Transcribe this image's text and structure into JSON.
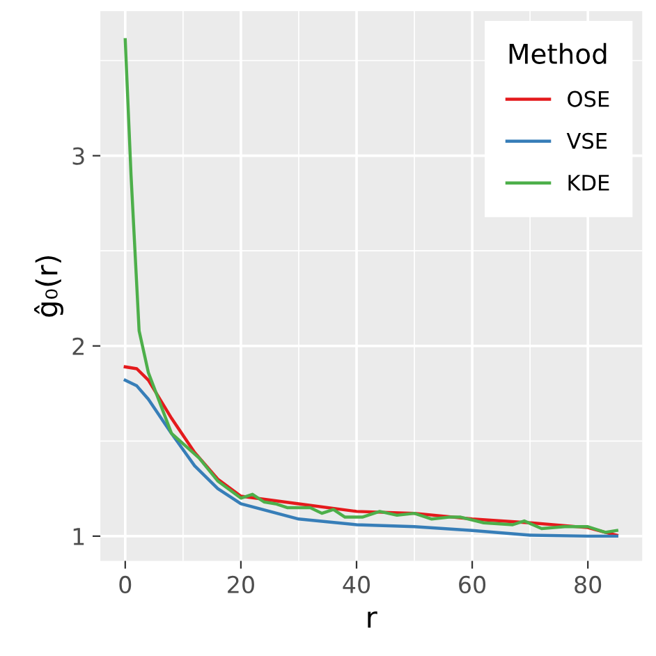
{
  "chart_data": {
    "type": "line",
    "xlabel": "r",
    "ylabel": "ĝ₀(r)",
    "legend_title": "Method",
    "xlim": [
      -4.3,
      89.4
    ],
    "ylim": [
      0.87,
      3.76
    ],
    "xticks": [
      0,
      20,
      40,
      60,
      80
    ],
    "yticks": [
      1,
      2,
      3
    ],
    "grid": true,
    "legend": "top right",
    "marker": "none",
    "line_style": "solid",
    "series": [
      {
        "name": "OSE",
        "color": "#e41a1c",
        "x": [
          0,
          2,
          4,
          8,
          12,
          16,
          20,
          30,
          40,
          50,
          60,
          70,
          80,
          83,
          85
        ],
        "values": [
          1.89,
          1.88,
          1.82,
          1.62,
          1.44,
          1.3,
          1.21,
          1.17,
          1.13,
          1.12,
          1.09,
          1.07,
          1.045,
          1.02,
          1.005
        ]
      },
      {
        "name": "VSE",
        "color": "#377eb8",
        "x": [
          0,
          2,
          4,
          8,
          12,
          16,
          20,
          30,
          40,
          50,
          60,
          70,
          80,
          85
        ],
        "values": [
          1.82,
          1.79,
          1.72,
          1.54,
          1.37,
          1.25,
          1.17,
          1.09,
          1.06,
          1.05,
          1.03,
          1.005,
          1.0,
          1.0
        ]
      },
      {
        "name": "KDE",
        "color": "#4daf4a",
        "x": [
          0,
          1,
          2.4,
          4,
          8,
          12.8,
          16,
          20,
          22,
          24,
          26,
          28,
          30,
          32,
          34,
          36,
          38,
          40,
          41,
          44,
          47,
          50,
          53,
          56,
          58,
          62,
          67,
          69,
          72,
          76,
          80,
          83,
          85
        ],
        "values": [
          3.61,
          2.9,
          2.08,
          1.86,
          1.54,
          1.41,
          1.29,
          1.2,
          1.22,
          1.18,
          1.17,
          1.15,
          1.15,
          1.15,
          1.12,
          1.14,
          1.1,
          1.1,
          1.1,
          1.13,
          1.11,
          1.12,
          1.09,
          1.1,
          1.1,
          1.07,
          1.06,
          1.08,
          1.04,
          1.05,
          1.05,
          1.02,
          1.03
        ]
      }
    ]
  }
}
